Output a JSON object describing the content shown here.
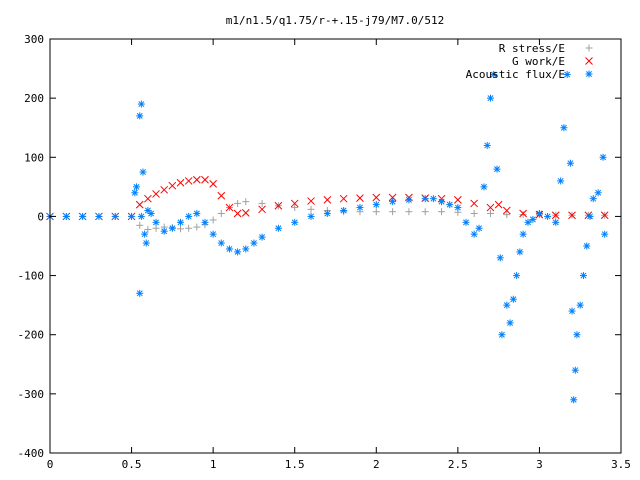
{
  "chart_data": {
    "type": "scatter",
    "title": "m1/n1.5/q1.75/r-+.15-j79/M7.0/512",
    "xlabel": "",
    "ylabel": "",
    "xlim": [
      0,
      3.5
    ],
    "ylim": [
      -400,
      300
    ],
    "xticks": [
      "0",
      "0.5",
      "1",
      "1.5",
      "2",
      "2.5",
      "3",
      "3.5"
    ],
    "yticks": [
      "300",
      "200",
      "100",
      "0",
      "-100",
      "-200",
      "-300",
      "-400"
    ],
    "grid": false,
    "legend_position": "top-right",
    "series": [
      {
        "name": "R stress/E",
        "marker": "+",
        "color": "#a0a0a0",
        "x": [
          0.0,
          0.1,
          0.2,
          0.3,
          0.4,
          0.5,
          0.55,
          0.6,
          0.65,
          0.7,
          0.75,
          0.8,
          0.85,
          0.9,
          0.95,
          1.0,
          1.05,
          1.1,
          1.15,
          1.2,
          1.3,
          1.4,
          1.5,
          1.6,
          1.7,
          1.8,
          1.9,
          2.0,
          2.1,
          2.2,
          2.3,
          2.4,
          2.5,
          2.6,
          2.7,
          2.8,
          2.9,
          3.0,
          3.1,
          3.2,
          3.3,
          3.4
        ],
        "y": [
          0,
          0,
          0,
          0,
          0,
          0,
          -15,
          -22,
          -20,
          -18,
          -19,
          -21,
          -20,
          -18,
          -14,
          -6,
          5,
          15,
          22,
          25,
          22,
          18,
          15,
          12,
          10,
          8,
          8,
          8,
          8,
          8,
          8,
          8,
          7,
          5,
          5,
          3,
          3,
          3,
          2,
          2,
          2,
          2
        ]
      },
      {
        "name": "G work/E",
        "marker": "x",
        "color": "#ff0000",
        "x": [
          0.0,
          0.1,
          0.2,
          0.3,
          0.4,
          0.5,
          0.55,
          0.6,
          0.65,
          0.7,
          0.75,
          0.8,
          0.85,
          0.9,
          0.95,
          1.0,
          1.05,
          1.1,
          1.15,
          1.2,
          1.3,
          1.4,
          1.5,
          1.6,
          1.7,
          1.8,
          1.9,
          2.0,
          2.1,
          2.2,
          2.3,
          2.4,
          2.5,
          2.6,
          2.7,
          2.75,
          2.8,
          2.9,
          3.0,
          3.1,
          3.2,
          3.3,
          3.4
        ],
        "y": [
          0,
          0,
          0,
          0,
          0,
          0,
          20,
          30,
          38,
          45,
          52,
          57,
          60,
          62,
          62,
          55,
          35,
          15,
          5,
          6,
          12,
          18,
          22,
          26,
          28,
          30,
          31,
          32,
          32,
          32,
          31,
          30,
          28,
          22,
          15,
          20,
          10,
          5,
          3,
          2,
          2,
          2,
          2
        ]
      },
      {
        "name": "Acoustic flux/E",
        "marker": "*",
        "color": "#0080ff",
        "x": [
          0.0,
          0.1,
          0.2,
          0.3,
          0.4,
          0.5,
          0.52,
          0.53,
          0.55,
          0.55,
          0.56,
          0.56,
          0.57,
          0.58,
          0.59,
          0.6,
          0.62,
          0.65,
          0.7,
          0.75,
          0.8,
          0.85,
          0.9,
          0.95,
          1.0,
          1.05,
          1.1,
          1.15,
          1.2,
          1.25,
          1.3,
          1.4,
          1.5,
          1.6,
          1.7,
          1.8,
          1.9,
          2.0,
          2.1,
          2.2,
          2.3,
          2.35,
          2.4,
          2.45,
          2.5,
          2.55,
          2.6,
          2.63,
          2.66,
          2.68,
          2.7,
          2.72,
          2.74,
          2.76,
          2.77,
          2.8,
          2.82,
          2.84,
          2.86,
          2.88,
          2.9,
          2.93,
          2.96,
          3.0,
          3.05,
          3.1,
          3.13,
          3.15,
          3.17,
          3.19,
          3.2,
          3.21,
          3.22,
          3.23,
          3.25,
          3.27,
          3.29,
          3.31,
          3.33,
          3.36,
          3.39,
          3.4
        ],
        "y": [
          0,
          0,
          0,
          0,
          0,
          0,
          40,
          50,
          170,
          -130,
          190,
          0,
          75,
          -30,
          -45,
          10,
          5,
          -10,
          -25,
          -20,
          -10,
          0,
          5,
          -10,
          -30,
          -45,
          -55,
          -60,
          -55,
          -45,
          -35,
          -20,
          -10,
          0,
          5,
          10,
          15,
          20,
          25,
          28,
          30,
          30,
          25,
          20,
          15,
          -10,
          -30,
          -20,
          50,
          120,
          200,
          240,
          80,
          -70,
          -200,
          -150,
          -180,
          -140,
          -100,
          -60,
          -30,
          -10,
          -5,
          5,
          0,
          -10,
          60,
          150,
          240,
          90,
          -160,
          -310,
          -260,
          -200,
          -150,
          -100,
          -50,
          0,
          30,
          40,
          100,
          -30
        ]
      }
    ]
  }
}
